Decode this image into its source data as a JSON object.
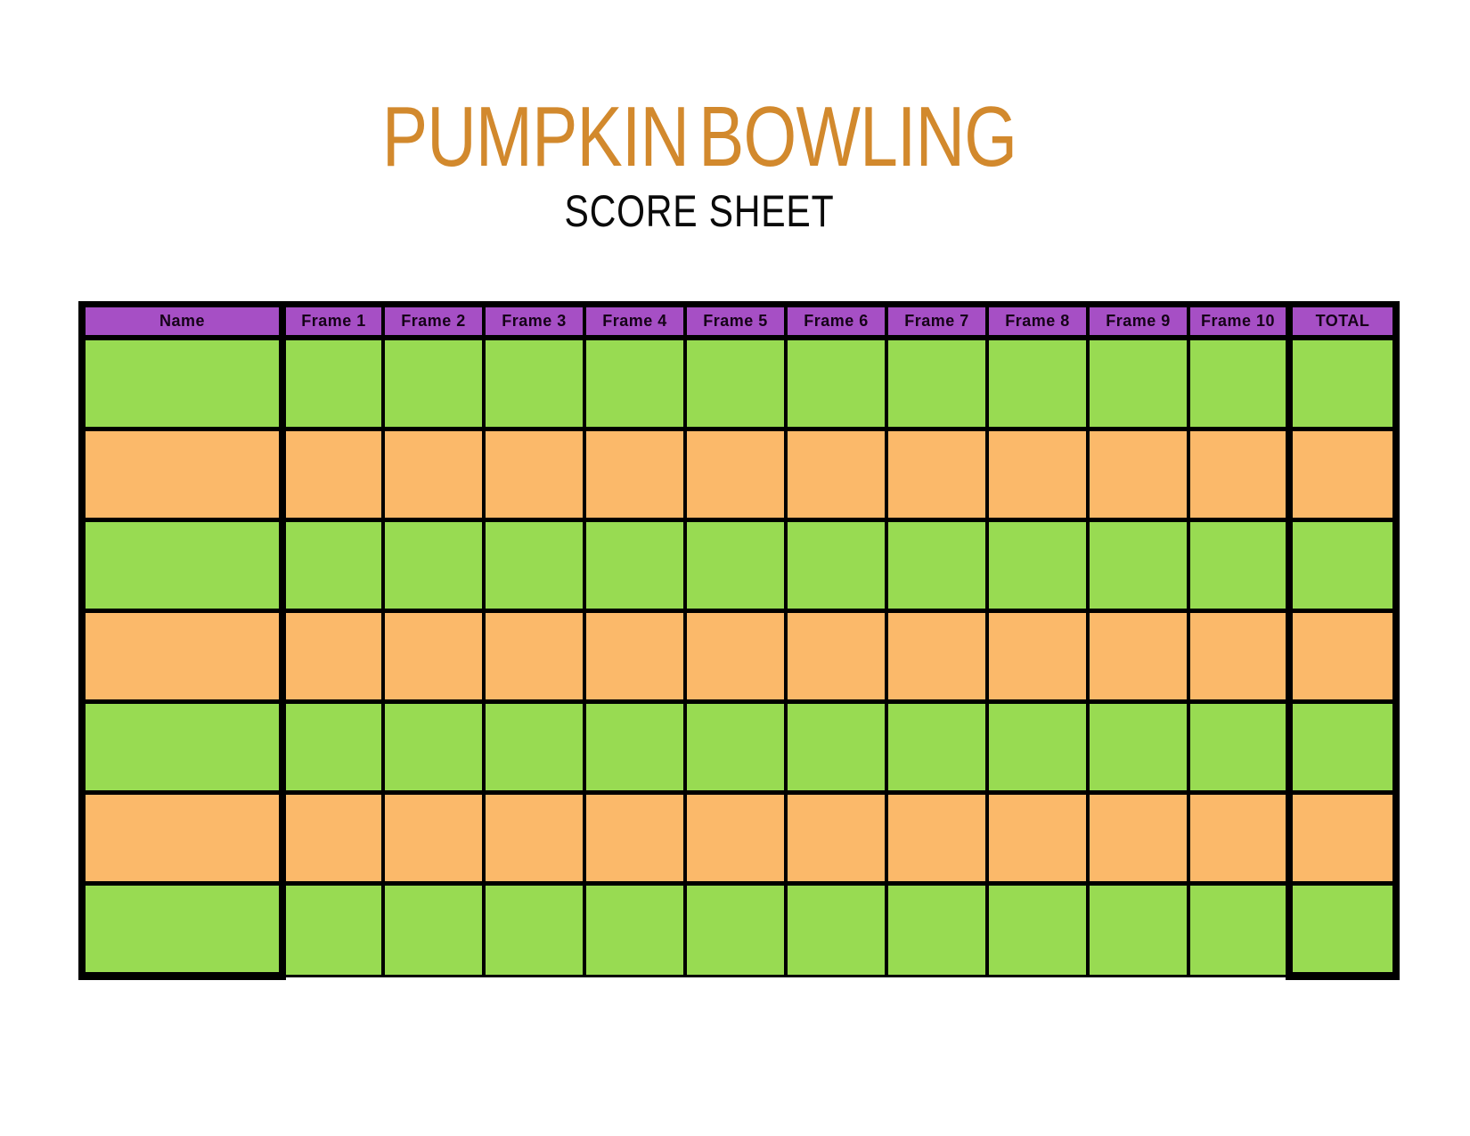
{
  "header": {
    "title": "PUMPKIN BOWLING",
    "subtitle": "SCORE SHEET",
    "title_color": "#d2892d"
  },
  "table": {
    "columns": [
      "Name",
      "Frame 1",
      "Frame 2",
      "Frame 3",
      "Frame 4",
      "Frame 5",
      "Frame 6",
      "Frame 7",
      "Frame 8",
      "Frame 9",
      "Frame 10",
      "TOTAL"
    ],
    "rows": [
      {
        "color": "green",
        "cells": [
          "",
          "",
          "",
          "",
          "",
          "",
          "",
          "",
          "",
          "",
          "",
          ""
        ]
      },
      {
        "color": "orange",
        "cells": [
          "",
          "",
          "",
          "",
          "",
          "",
          "",
          "",
          "",
          "",
          "",
          ""
        ]
      },
      {
        "color": "green",
        "cells": [
          "",
          "",
          "",
          "",
          "",
          "",
          "",
          "",
          "",
          "",
          "",
          ""
        ]
      },
      {
        "color": "orange",
        "cells": [
          "",
          "",
          "",
          "",
          "",
          "",
          "",
          "",
          "",
          "",
          "",
          ""
        ]
      },
      {
        "color": "green",
        "cells": [
          "",
          "",
          "",
          "",
          "",
          "",
          "",
          "",
          "",
          "",
          "",
          ""
        ]
      },
      {
        "color": "orange",
        "cells": [
          "",
          "",
          "",
          "",
          "",
          "",
          "",
          "",
          "",
          "",
          "",
          ""
        ]
      },
      {
        "color": "green",
        "cells": [
          "",
          "",
          "",
          "",
          "",
          "",
          "",
          "",
          "",
          "",
          "",
          ""
        ]
      }
    ],
    "colors": {
      "header_bg": "#a64fc5",
      "row_green": "#98db52",
      "row_orange": "#fbb96a",
      "border": "#000000"
    }
  }
}
